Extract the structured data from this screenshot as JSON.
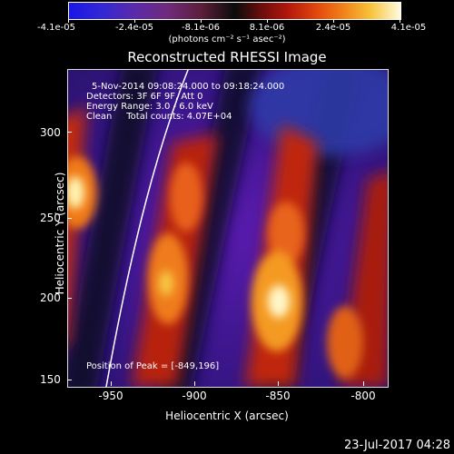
{
  "colorbar": {
    "ticks": [
      "-4.1e-05",
      "-2.4e-05",
      "-8.1e-06",
      "8.1e-06",
      "2.4e-05",
      "4.1e-05"
    ],
    "unit": "(photons cm⁻² s⁻¹ asec⁻²)"
  },
  "title": "Reconstructed RHESSI Image",
  "info": {
    "time_range": "5-Nov-2014 09:08:24.000 to 09:18:24.000",
    "detectors": "Detectors: 3F 6F 9F, Att 0",
    "energy": "Energy Range: 3.0 - 6.0 keV",
    "clean": "Clean     Total counts: 4.07E+04",
    "peak": "Position of Peak = [-849,196]"
  },
  "axes": {
    "xlabel": "Heliocentric X (arcsec)",
    "ylabel": "Heliocentric Y (arcsec)",
    "xticks": [
      "-950",
      "-900",
      "-850",
      "-800"
    ],
    "yticks": [
      "300",
      "250",
      "200",
      "150"
    ]
  },
  "timestamp": "23-Jul-2017 04:28"
}
